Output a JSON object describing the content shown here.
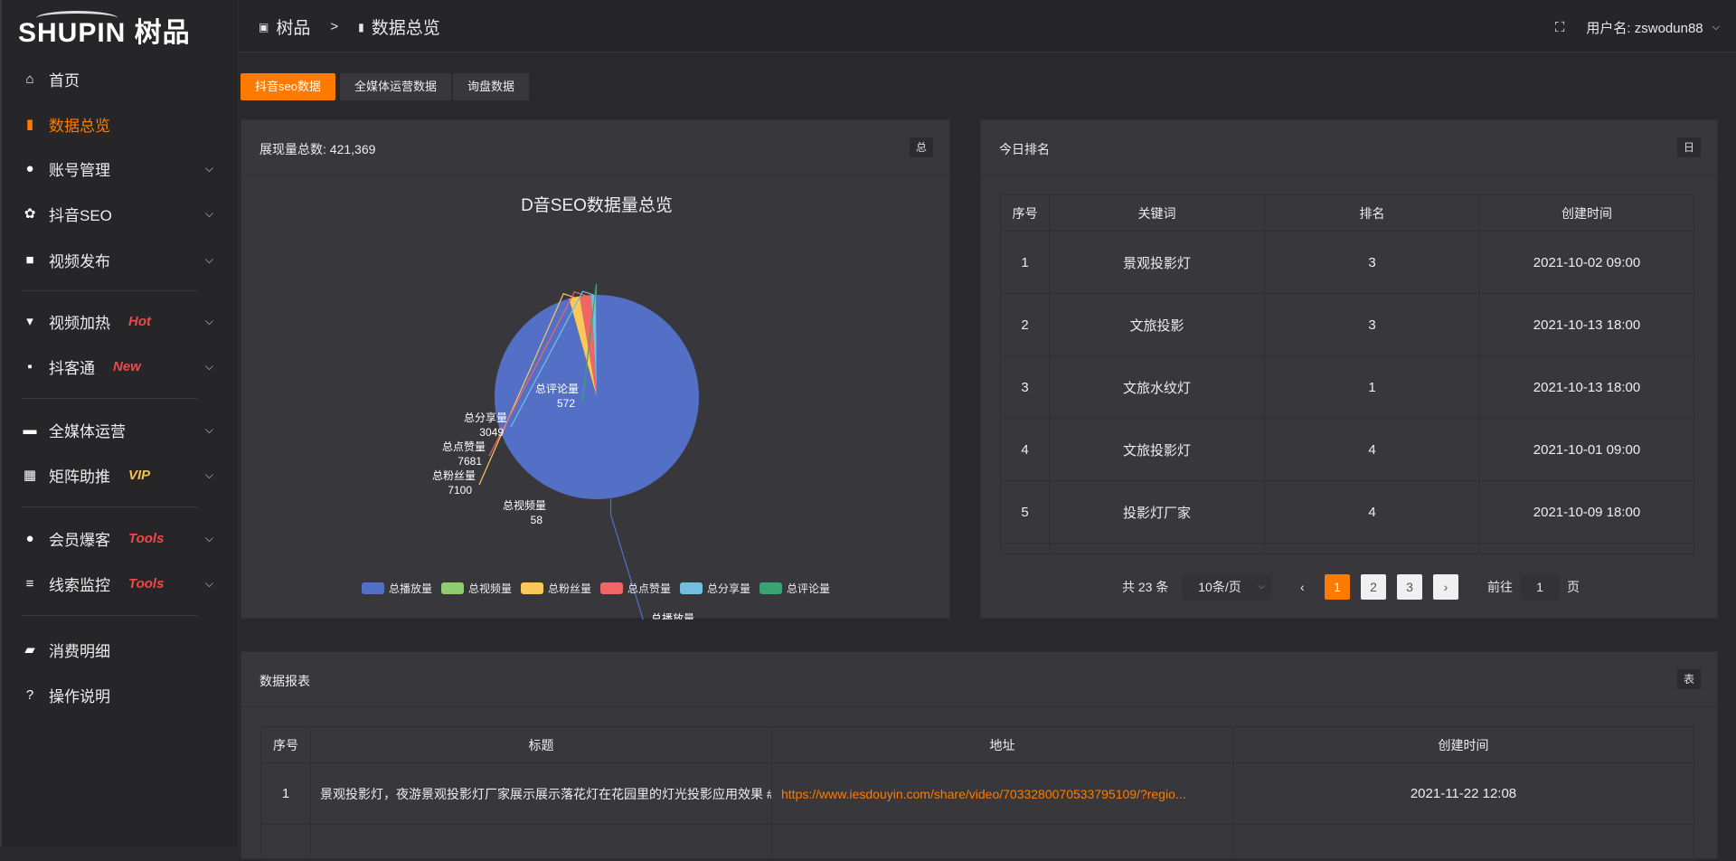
{
  "logo": "SHUPIN 树品",
  "sidebar": {
    "items": [
      {
        "label": "首页",
        "icon": "home-icon"
      },
      {
        "label": "数据总览",
        "icon": "bar-chart-icon",
        "active": true
      },
      {
        "label": "账号管理",
        "icon": "user-icon"
      },
      {
        "label": "抖音SEO",
        "icon": "gear-icon"
      },
      {
        "label": "视频发布",
        "icon": "camera-icon"
      },
      {
        "label": "视频加热",
        "icon": "monitor-icon",
        "badge": "Hot",
        "badge_color": "#f04848"
      },
      {
        "label": "抖客通",
        "icon": "chat-icon",
        "badge": "New",
        "badge_color": "#f04848"
      },
      {
        "label": "全媒体运营",
        "icon": "desktop-icon"
      },
      {
        "label": "矩阵助推",
        "icon": "grid-icon",
        "badge": "VIP",
        "badge_color": "#f5c04a"
      },
      {
        "label": "会员爆客",
        "icon": "user-icon",
        "badge": "Tools",
        "badge_color": "#f04848"
      },
      {
        "label": "线索监控",
        "icon": "sliders-icon",
        "badge": "Tools",
        "badge_color": "#f04848"
      },
      {
        "label": "消费明细",
        "icon": "wallet-icon"
      },
      {
        "label": "操作说明",
        "icon": "question-icon"
      }
    ]
  },
  "header": {
    "breadcrumb": [
      "树品",
      "数据总览"
    ],
    "user_label": "用户名: zswodun88"
  },
  "tabs": [
    "抖音seo数据",
    "全媒体运营数据",
    "询盘数据"
  ],
  "overview": {
    "title": "展现量总数: 421,369",
    "button": "总"
  },
  "chart_data": {
    "type": "pie",
    "title": "D音SEO数据量总览",
    "legend_position": "bottom",
    "slices": [
      {
        "name": "总播放量",
        "value": 402909,
        "color": "#5470c6"
      },
      {
        "name": "总视频量",
        "value": 58,
        "color": "#91cc75"
      },
      {
        "name": "总粉丝量",
        "value": 7100,
        "color": "#fac858"
      },
      {
        "name": "总点赞量",
        "value": 7681,
        "color": "#ee6666"
      },
      {
        "name": "总分享量",
        "value": 3049,
        "color": "#73c0de"
      },
      {
        "name": "总评论量",
        "value": 572,
        "color": "#3ba272"
      }
    ]
  },
  "ranking": {
    "title": "今日排名",
    "button": "日",
    "columns": [
      "序号",
      "关键词",
      "排名",
      "创建时间"
    ],
    "rows": [
      [
        "1",
        "景观投影灯",
        "3",
        "2021-10-02 09:00"
      ],
      [
        "2",
        "文旅投影",
        "3",
        "2021-10-13 18:00"
      ],
      [
        "3",
        "文旅水纹灯",
        "1",
        "2021-10-13 18:00"
      ],
      [
        "4",
        "文旅投影灯",
        "4",
        "2021-10-01 09:00"
      ],
      [
        "5",
        "投影灯厂家",
        "4",
        "2021-10-09 18:00"
      ]
    ],
    "pagination": {
      "total": "共 23 条",
      "page_size": "10条/页",
      "pages": [
        "1",
        "2",
        "3"
      ],
      "current": "1",
      "goto_label": "前往",
      "goto_value": "1",
      "page_suffix": "页"
    }
  },
  "report": {
    "title": "数据报表",
    "button": "表",
    "columns": [
      "序号",
      "标题",
      "地址",
      "创建时间"
    ],
    "rows": [
      [
        "1",
        "景观投影灯，夜游景观投影灯厂家展示展示落花灯在花园里的灯光投影应用效果 #",
        "https://www.iesdouyin.com/share/video/7033280070533795109/?regio...",
        "2021-11-22 12:08"
      ]
    ]
  },
  "accent": "#ff7a00"
}
